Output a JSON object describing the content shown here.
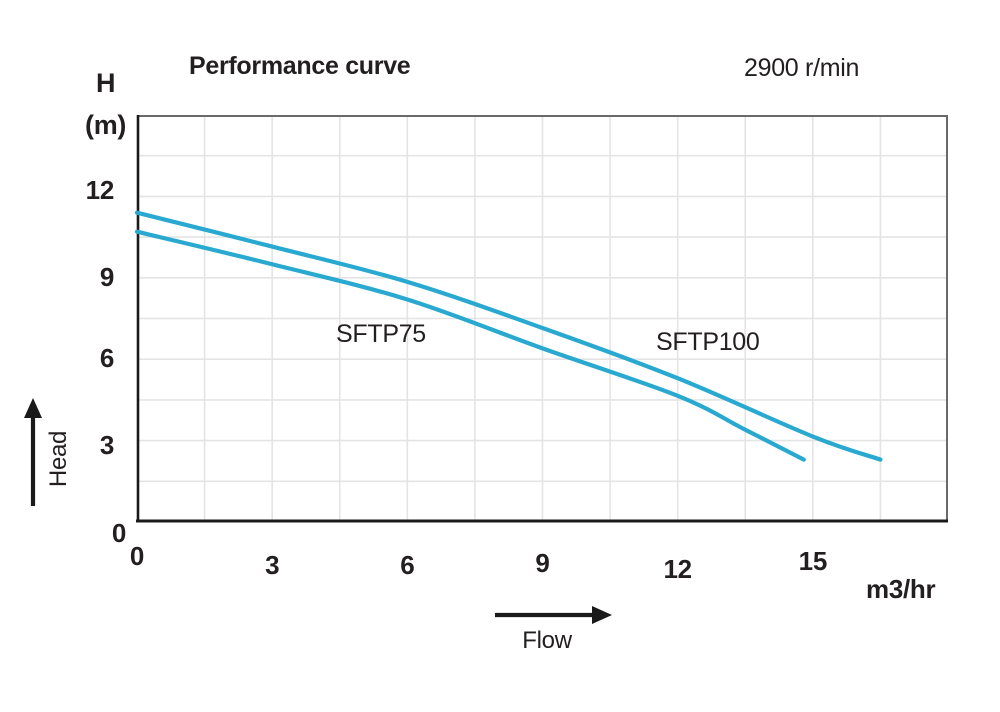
{
  "header": {
    "title": "Performance curve",
    "speed": "2900 r/min"
  },
  "y_axis": {
    "symbol": "H",
    "unit_label": "(m)",
    "name": "Head",
    "ticks": [
      0,
      3,
      6,
      9,
      12
    ]
  },
  "x_axis": {
    "unit_label": "m3/hr",
    "name": "Flow",
    "ticks": [
      0,
      3,
      6,
      9,
      12,
      15
    ]
  },
  "chart_data": {
    "type": "line",
    "title": "Performance curve",
    "annotation": "2900 r/min",
    "xlabel": "Flow (m3/hr)",
    "ylabel": "Head H (m)",
    "xlim": [
      0,
      18
    ],
    "ylim": [
      0,
      15
    ],
    "grid": true,
    "grid_step": 1.5,
    "legend_position": "inline-labels",
    "line_color": "#29a9d0",
    "axis_color": "#1a1a1a",
    "border_color": "#6a6a6a",
    "grid_color": "#e4e4e4",
    "series": [
      {
        "name": "SFTP75",
        "x": [
          0,
          3,
          6,
          9,
          12,
          13.5,
          14.8
        ],
        "y": [
          10.7,
          9.5,
          8.2,
          6.4,
          4.65,
          3.4,
          2.3
        ]
      },
      {
        "name": "SFTP100",
        "x": [
          0,
          3,
          6,
          9,
          12,
          15,
          16.5
        ],
        "y": [
          11.4,
          10.15,
          8.85,
          7.15,
          5.3,
          3.15,
          2.3
        ]
      }
    ]
  }
}
